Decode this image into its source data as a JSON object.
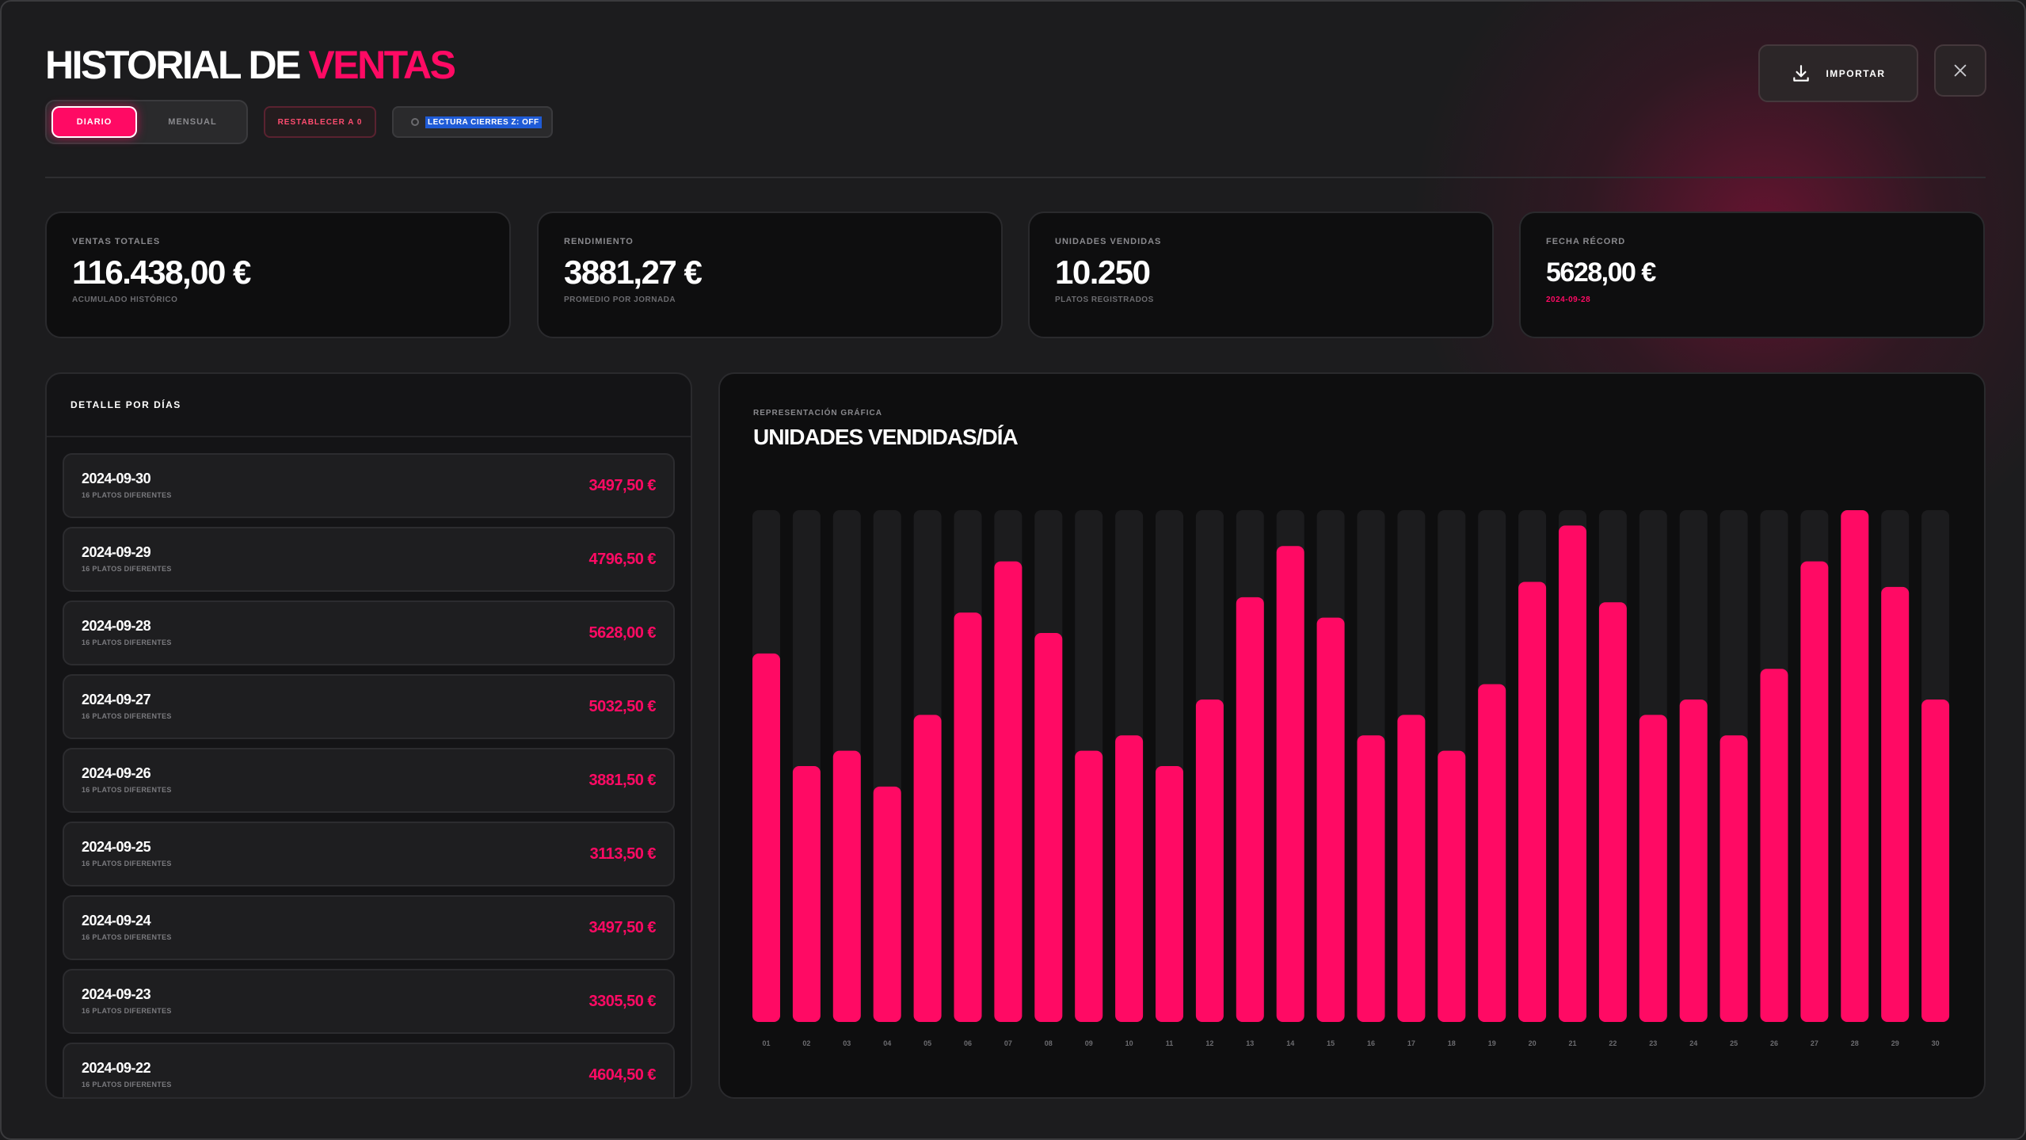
{
  "header": {
    "title_main": "HISTORIAL DE ",
    "title_accent": "VENTAS",
    "tab_daily": "DIARIO",
    "tab_monthly": "MENSUAL",
    "reset_label": "RESTABLECER A 0",
    "z_label": "LECTURA CIERRES Z: OFF",
    "import_label": "IMPORTAR",
    "import_icon": "download-icon",
    "close_icon": "close-icon"
  },
  "stats": [
    {
      "label": "VENTAS TOTALES",
      "value": "116.438,00 €",
      "sub": "ACUMULADO HISTÓRICO"
    },
    {
      "label": "RENDIMIENTO",
      "value": "3881,27 €",
      "sub": "PROMEDIO POR JORNADA"
    },
    {
      "label": "UNIDADES VENDIDAS",
      "value": "10.250",
      "sub": "PLATOS REGISTRADOS"
    },
    {
      "label": "FECHA RÉCORD",
      "value": "5628,00 €",
      "sub": "2024-09-28"
    }
  ],
  "days": {
    "title": "DETALLE POR DÍAS",
    "rows": [
      {
        "date": "2024-09-30",
        "meta": "16 PLATOS DIFERENTES",
        "amount": "3497,50 €"
      },
      {
        "date": "2024-09-29",
        "meta": "16 PLATOS DIFERENTES",
        "amount": "4796,50 €"
      },
      {
        "date": "2024-09-28",
        "meta": "16 PLATOS DIFERENTES",
        "amount": "5628,00 €"
      },
      {
        "date": "2024-09-27",
        "meta": "16 PLATOS DIFERENTES",
        "amount": "5032,50 €"
      },
      {
        "date": "2024-09-26",
        "meta": "16 PLATOS DIFERENTES",
        "amount": "3881,50 €"
      },
      {
        "date": "2024-09-25",
        "meta": "16 PLATOS DIFERENTES",
        "amount": "3113,50 €"
      },
      {
        "date": "2024-09-24",
        "meta": "16 PLATOS DIFERENTES",
        "amount": "3497,50 €"
      },
      {
        "date": "2024-09-23",
        "meta": "16 PLATOS DIFERENTES",
        "amount": "3305,50 €"
      },
      {
        "date": "2024-09-22",
        "meta": "16 PLATOS DIFERENTES",
        "amount": "4604,50 €"
      }
    ]
  },
  "chart": {
    "kicker": "REPRESENTACIÓN GRÁFICA",
    "title": "UNIDADES VENDIDAS/DÍA"
  },
  "colors": {
    "accent": "#ff0a64",
    "track": "#1c1c1e"
  },
  "chart_data": {
    "type": "bar",
    "categories": [
      "01",
      "02",
      "03",
      "04",
      "05",
      "06",
      "07",
      "08",
      "09",
      "10",
      "11",
      "12",
      "13",
      "14",
      "15",
      "16",
      "17",
      "18",
      "19",
      "20",
      "21",
      "22",
      "23",
      "24",
      "25",
      "26",
      "27",
      "28",
      "29",
      "30"
    ],
    "values": [
      0.72,
      0.5,
      0.53,
      0.46,
      0.6,
      0.8,
      0.9,
      0.76,
      0.53,
      0.56,
      0.5,
      0.63,
      0.83,
      0.93,
      0.79,
      0.56,
      0.6,
      0.53,
      0.66,
      0.86,
      0.97,
      0.82,
      0.6,
      0.63,
      0.56,
      0.69,
      0.9,
      1.0,
      0.85,
      0.63
    ],
    "ylim": [
      0,
      1
    ],
    "title": "UNIDADES VENDIDAS/DÍA"
  }
}
